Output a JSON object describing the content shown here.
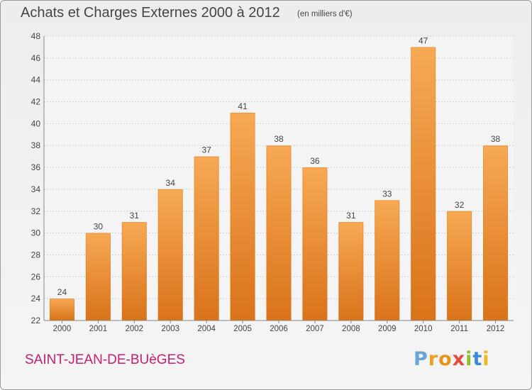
{
  "header": {
    "title": "Achats et Charges Externes 2000 à 2012",
    "subtitle": "(en milliers d'€)"
  },
  "footer": {
    "commune": "SAINT-JEAN-DE-BUèGES",
    "logo": {
      "p": "P",
      "r": "r",
      "o": "o",
      "x": "x",
      "i": "i",
      "t": "t",
      "i2": "i"
    }
  },
  "colors": {
    "bar": "#f2922e",
    "bar_light": "#f7a954",
    "bar_dark": "#d9731a",
    "title": "#454545",
    "commune": "#c81e6e",
    "grid": "#cfcfcf"
  },
  "chart_data": {
    "type": "bar",
    "title": "Achats et Charges Externes 2000 à 2012",
    "subtitle": "(en milliers d'€)",
    "categories": [
      "2000",
      "2001",
      "2002",
      "2003",
      "2004",
      "2005",
      "2006",
      "2007",
      "2008",
      "2009",
      "2010",
      "2011",
      "2012"
    ],
    "values": [
      24,
      30,
      31,
      34,
      37,
      41,
      38,
      36,
      31,
      33,
      47,
      32,
      38
    ],
    "data_labels": [
      "24",
      "30",
      "31",
      "34",
      "37",
      "41",
      "38",
      "36",
      "31",
      "33",
      "47",
      "32",
      "38"
    ],
    "ylim": [
      22,
      48
    ],
    "yticks": [
      22,
      24,
      26,
      28,
      30,
      32,
      34,
      36,
      38,
      40,
      42,
      44,
      46,
      48
    ],
    "ytick_labels": [
      "22",
      "24",
      "26",
      "28",
      "30",
      "32",
      "34",
      "36",
      "38",
      "40",
      "42",
      "44",
      "46",
      "48"
    ],
    "grid": true,
    "xlabel": "",
    "ylabel": ""
  }
}
